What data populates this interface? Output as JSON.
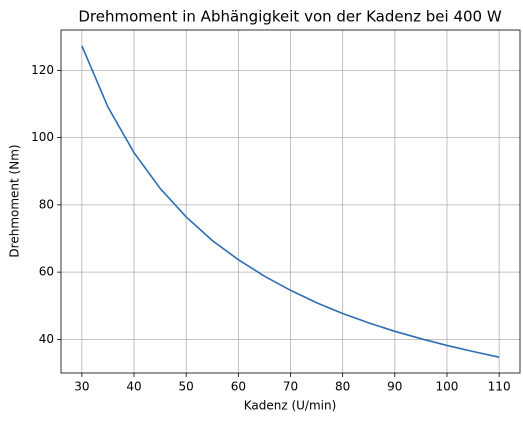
{
  "chart_data": {
    "type": "line",
    "title": "Drehmoment in Abhängigkeit von der Kadenz bei 400 W",
    "x_label": "Kadenz (U/min)",
    "y_label": "Drehmoment (Nm)",
    "x": [
      30,
      35,
      40,
      45,
      50,
      55,
      60,
      65,
      70,
      75,
      80,
      85,
      90,
      95,
      100,
      105,
      110
    ],
    "series": [
      {
        "color": "#2e6db4",
        "values": [
          127.3,
          109.1,
          95.5,
          84.9,
          76.4,
          69.4,
          63.7,
          58.8,
          54.6,
          50.9,
          47.7,
          44.9,
          42.4,
          40.2,
          38.2,
          36.4,
          34.7
        ]
      }
    ],
    "xlim": [
      26,
      114
    ],
    "ylim": [
      30,
      132
    ],
    "xticks": [
      30,
      40,
      50,
      60,
      70,
      80,
      90,
      100,
      110
    ],
    "yticks": [
      40,
      60,
      80,
      100,
      120
    ],
    "grid": true
  }
}
